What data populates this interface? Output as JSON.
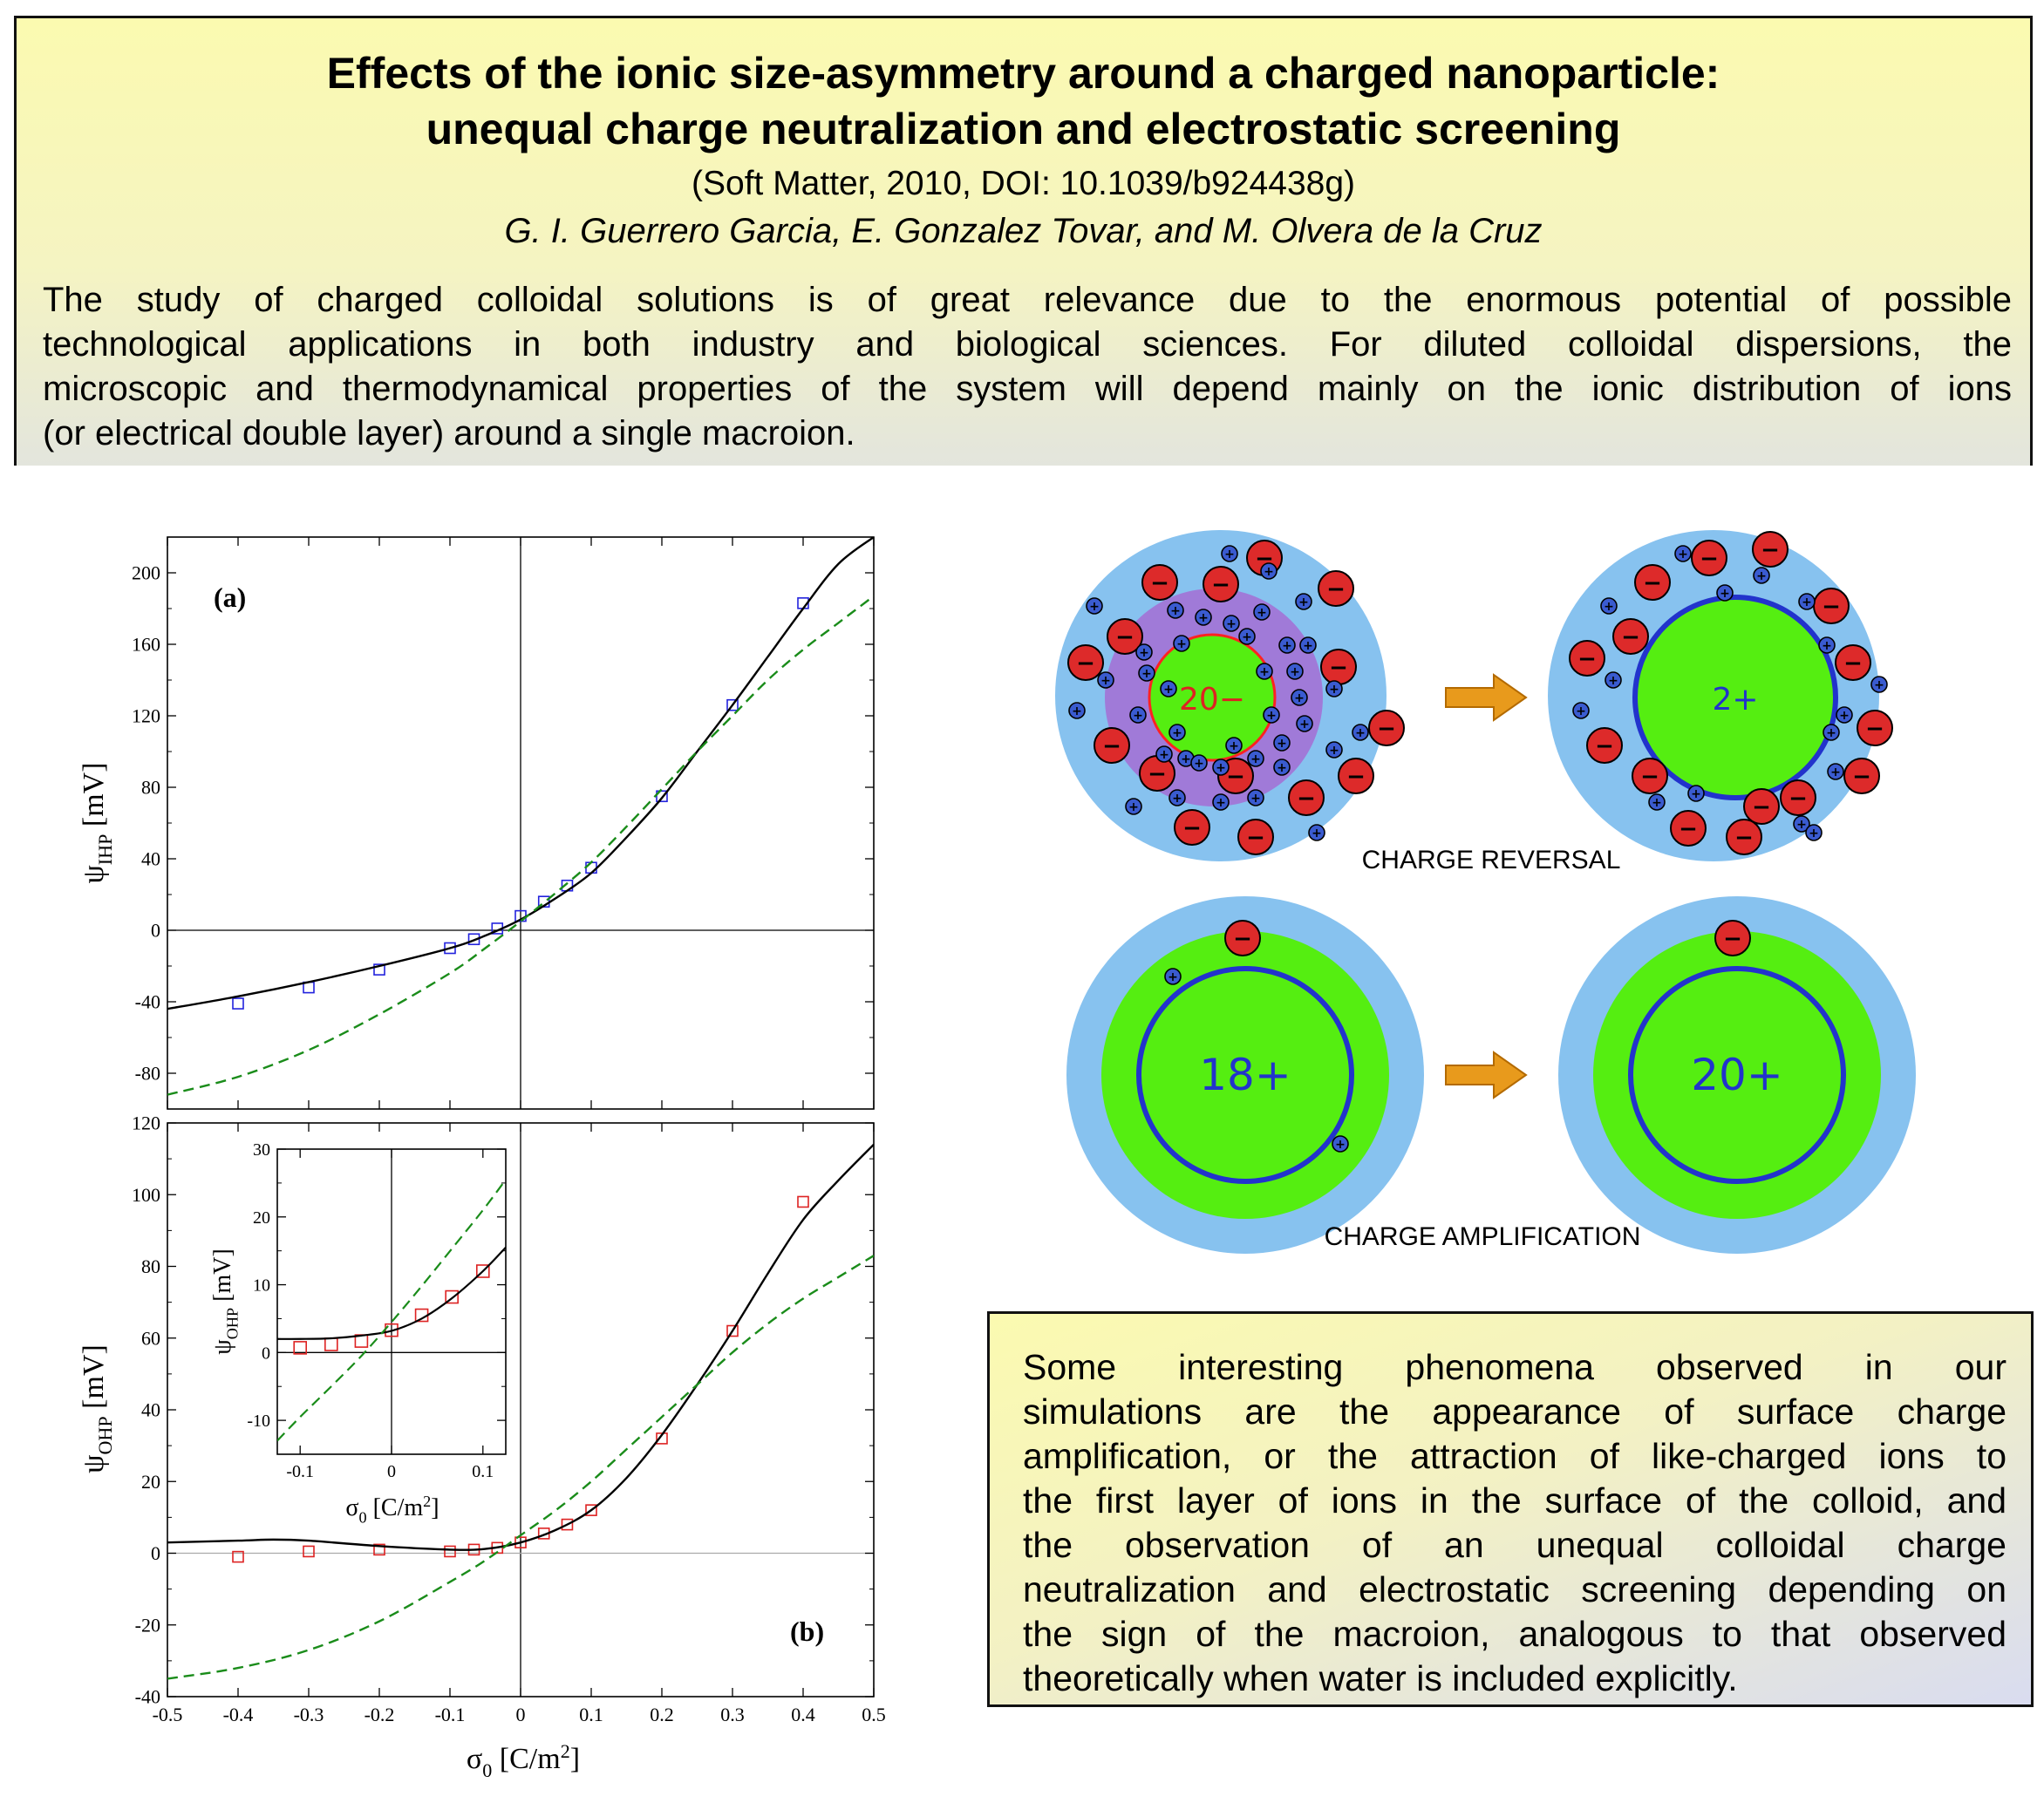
{
  "header": {
    "title_line1": "Effects of the ionic size-asymmetry around a charged nanoparticle:",
    "title_line2": "unequal charge neutralization and electrostatic screening",
    "citation": "(Soft Matter, 2010, DOI: 10.1039/b924438g)",
    "authors": "G. I. Guerrero Garcia, E. Gonzalez Tovar, and M. Olvera de la Cruz"
  },
  "abstract": {
    "lines": [
      "The study of charged colloidal solutions is of great relevance due to the enormous potential of possible",
      "technological applications in both industry and biological sciences. For diluted colloidal dispersions, the",
      "microscopic and thermodynamical properties of the system will depend mainly on the ionic distribution of ions",
      "(or electrical double layer) around a single macroion."
    ]
  },
  "diagram": {
    "charge_reversal_caption": "CHARGE REVERSAL",
    "charge_amplification_caption": "CHARGE AMPLIFICATION",
    "particle_before_reversal": "20−",
    "particle_after_reversal": "2+",
    "particle_before_amplification": "18+",
    "particle_after_amplification": "20+",
    "minus_symbol": "−",
    "plus_symbol": "+",
    "colors": {
      "solvent": "#87c2ef",
      "core": "#55ee11",
      "counterion_shell": "#a07ad8",
      "anion": "#dd2a2a",
      "cation": "#3a5bd0",
      "arrow": "#e89a1c",
      "ring": "#2233cc"
    }
  },
  "summary": {
    "lines": [
      "Some interesting phenomena observed in our",
      "simulations are the appearance of surface charge",
      "amplification, or the attraction of like-charged ions to",
      "the first layer of ions in the surface of the colloid, and",
      "the observation of an unequal colloidal charge",
      "neutralization and electrostatic screening depending on",
      "the sign of the macroion, analogous to that observed",
      "theoretically when water is included explicitly."
    ]
  },
  "chart_data": [
    {
      "type": "scatter",
      "panel_label": "(a)",
      "ylabel_base": "ψ",
      "ylabel_sub": "IHP",
      "ylabel_unit": " [mV]",
      "xlim": [
        -0.5,
        0.5
      ],
      "ylim": [
        -100,
        220
      ],
      "yticks": [
        -80,
        -40,
        0,
        40,
        80,
        120,
        160,
        200
      ],
      "grid": false,
      "series": [
        {
          "kind": "markers",
          "color": "#2222dd",
          "x": [
            -0.4,
            -0.3,
            -0.2,
            -0.1,
            -0.066,
            -0.033,
            0.0,
            0.033,
            0.066,
            0.1,
            0.2,
            0.3,
            0.4
          ],
          "y": [
            -41,
            -32,
            -22,
            -10,
            -5,
            1,
            8,
            16,
            25,
            35,
            75,
            126,
            183
          ]
        },
        {
          "kind": "solid",
          "color": "#000000",
          "x": [
            -0.5,
            -0.4,
            -0.3,
            -0.2,
            -0.1,
            -0.05,
            0.0,
            0.05,
            0.1,
            0.15,
            0.2,
            0.25,
            0.3,
            0.35,
            0.4,
            0.45,
            0.5
          ],
          "y": [
            -44,
            -37,
            -29,
            -20,
            -10,
            -3,
            6,
            18,
            32,
            52,
            74,
            100,
            126,
            153,
            180,
            205,
            220
          ]
        },
        {
          "kind": "dashed",
          "color": "#1a8c1a",
          "x": [
            -0.5,
            -0.4,
            -0.3,
            -0.2,
            -0.1,
            -0.05,
            0.0,
            0.05,
            0.1,
            0.15,
            0.2,
            0.25,
            0.3,
            0.35,
            0.4,
            0.45,
            0.5
          ],
          "y": [
            -92,
            -82,
            -67,
            -47,
            -24,
            -10,
            5,
            21,
            38,
            58,
            79,
            100,
            120,
            140,
            157,
            172,
            187
          ]
        }
      ]
    },
    {
      "type": "scatter",
      "panel_label": "(b)",
      "ylabel_base": "ψ",
      "ylabel_sub": "OHP",
      "ylabel_unit": " [mV]",
      "xlabel_base": "σ",
      "xlabel_sub": "0",
      "xlabel_unit": " [C/m",
      "xlabel_sup": "2",
      "xlabel_end": "]",
      "xlim": [
        -0.5,
        0.5
      ],
      "ylim": [
        -40,
        120
      ],
      "xticks": [
        "-0.5",
        "-0.4",
        "-0.3",
        "-0.2",
        "-0.1",
        "0",
        "0.1",
        "0.2",
        "0.3",
        "0.4",
        "0.5"
      ],
      "yticks": [
        -40,
        -20,
        0,
        20,
        40,
        60,
        80,
        100,
        120
      ],
      "grid": false,
      "series": [
        {
          "kind": "markers",
          "color": "#dd2222",
          "x": [
            -0.4,
            -0.3,
            -0.2,
            -0.1,
            -0.066,
            -0.033,
            0.0,
            0.033,
            0.066,
            0.1,
            0.2,
            0.3,
            0.4
          ],
          "y": [
            -1,
            0.5,
            1,
            0.5,
            1,
            1.5,
            3,
            5.5,
            8,
            12,
            32,
            62,
            98
          ]
        },
        {
          "kind": "solid",
          "color": "#000000",
          "x": [
            -0.5,
            -0.4,
            -0.35,
            -0.3,
            -0.2,
            -0.1,
            -0.05,
            0.0,
            0.05,
            0.1,
            0.15,
            0.2,
            0.25,
            0.3,
            0.35,
            0.4,
            0.45,
            0.5
          ],
          "y": [
            3,
            3.5,
            3.8,
            3.5,
            2,
            1,
            1.2,
            3,
            6.5,
            12,
            21,
            33,
            47,
            62,
            78,
            93,
            104,
            114
          ]
        },
        {
          "kind": "dashed",
          "color": "#1a8c1a",
          "x": [
            -0.5,
            -0.4,
            -0.3,
            -0.2,
            -0.1,
            -0.05,
            0.0,
            0.05,
            0.1,
            0.15,
            0.2,
            0.25,
            0.3,
            0.35,
            0.4,
            0.45,
            0.5
          ],
          "y": [
            -35,
            -32,
            -27,
            -19,
            -8,
            -2,
            5,
            12,
            20,
            29,
            38,
            47,
            56,
            64,
            71,
            77,
            83
          ]
        }
      ]
    },
    {
      "type": "scatter",
      "panel_label": "inset",
      "ylabel_base": "ψ",
      "ylabel_sub": "OHP",
      "ylabel_unit": " [mV]",
      "xlabel_base": "σ",
      "xlabel_sub": "0",
      "xlabel_unit": " [C/m",
      "xlabel_sup": "2",
      "xlabel_end": "]",
      "xlim": [
        -0.125,
        0.125
      ],
      "ylim": [
        -15,
        30
      ],
      "xticks": [
        "-0.1",
        "0",
        "0.1"
      ],
      "yticks": [
        -10,
        0,
        10,
        20,
        30
      ],
      "grid": false,
      "series": [
        {
          "kind": "markers",
          "color": "#dd2222",
          "x": [
            -0.1,
            -0.066,
            -0.033,
            0.0,
            0.033,
            0.066,
            0.1
          ],
          "y": [
            0.7,
            1.2,
            1.7,
            3.3,
            5.5,
            8.2,
            12
          ]
        },
        {
          "kind": "solid",
          "color": "#000000",
          "x": [
            -0.125,
            -0.1,
            -0.066,
            -0.033,
            0.0,
            0.033,
            0.066,
            0.1,
            0.125
          ],
          "y": [
            2,
            2,
            2.1,
            2.5,
            3.2,
            5,
            8,
            12,
            15.5
          ]
        },
        {
          "kind": "dashed",
          "color": "#1a8c1a",
          "x": [
            -0.125,
            -0.1,
            -0.066,
            -0.033,
            0.0,
            0.033,
            0.066,
            0.1,
            0.125
          ],
          "y": [
            -13,
            -9.5,
            -5,
            -0.5,
            4.5,
            9.8,
            15.3,
            21,
            25.5
          ]
        }
      ]
    }
  ]
}
